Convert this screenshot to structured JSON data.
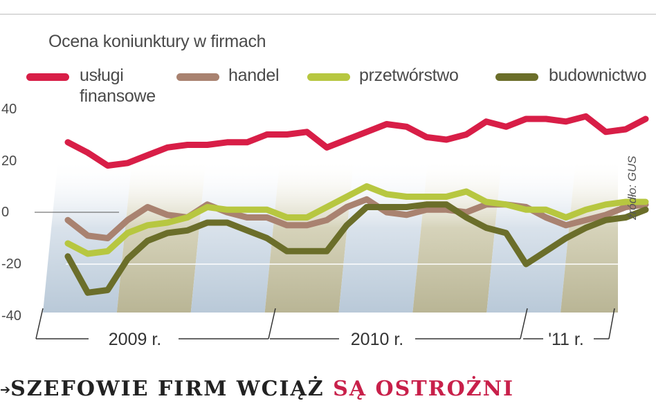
{
  "headline": {
    "arrow": "➔",
    "text_main": "SZEFOWIE FIRM WCIĄŻ ",
    "text_highlight": "SĄ OSTROŻNI"
  },
  "source": "źródło: GUS",
  "colors": {
    "uslugi": "#d81e47",
    "handel": "#a98270",
    "przetworstwo": "#b7c740",
    "budownictwo": "#6b6e2a",
    "highlight": "#c8204a"
  },
  "chart_data": {
    "type": "line",
    "title": "Ocena koniunktury w firmach",
    "xlabel": "",
    "ylabel": "",
    "ylim": [
      -40,
      40
    ],
    "yticks": [
      "40",
      "20",
      "0",
      "-20",
      "-40"
    ],
    "year_labels": [
      "2009 r.",
      "2010 r.",
      "'11 r."
    ],
    "x": [
      "2009-01",
      "2009-02",
      "2009-03",
      "2009-04",
      "2009-05",
      "2009-06",
      "2009-07",
      "2009-08",
      "2009-09",
      "2009-10",
      "2009-11",
      "2009-12",
      "2010-01",
      "2010-02",
      "2010-03",
      "2010-04",
      "2010-05",
      "2010-06",
      "2010-07",
      "2010-08",
      "2010-09",
      "2010-10",
      "2010-11",
      "2010-12",
      "2011-01",
      "2011-02",
      "2011-03",
      "2011-04",
      "2011-05",
      "2011-06"
    ],
    "series": [
      {
        "name": "usługi finansowe",
        "values": [
          27,
          23,
          18,
          19,
          22,
          25,
          26,
          26,
          27,
          27,
          30,
          30,
          31,
          25,
          28,
          31,
          34,
          33,
          29,
          28,
          30,
          35,
          33,
          36,
          36,
          35,
          37,
          31,
          32,
          36
        ]
      },
      {
        "name": "handel",
        "values": [
          -3,
          -9,
          -10,
          -3,
          2,
          -1,
          -2,
          3,
          0,
          -2,
          -2,
          -5,
          -5,
          -3,
          2,
          5,
          0,
          -1,
          1,
          1,
          0,
          3,
          3,
          2,
          -2,
          -5,
          -3,
          -1,
          2,
          3
        ]
      },
      {
        "name": "przetwórstwo",
        "values": [
          -12,
          -16,
          -15,
          -8,
          -5,
          -4,
          -2,
          2,
          1,
          1,
          1,
          -2,
          -2,
          2,
          6,
          10,
          7,
          6,
          6,
          6,
          8,
          4,
          3,
          1,
          1,
          -2,
          1,
          3,
          4,
          4
        ]
      },
      {
        "name": "budownictwo",
        "values": [
          -17,
          -31,
          -30,
          -18,
          -11,
          -8,
          -7,
          -4,
          -4,
          -7,
          -10,
          -15,
          -15,
          -15,
          -5,
          2,
          2,
          2,
          3,
          3,
          -2,
          -6,
          -8,
          -20,
          -15,
          -10,
          -6,
          -3,
          -2,
          1
        ]
      }
    ]
  }
}
